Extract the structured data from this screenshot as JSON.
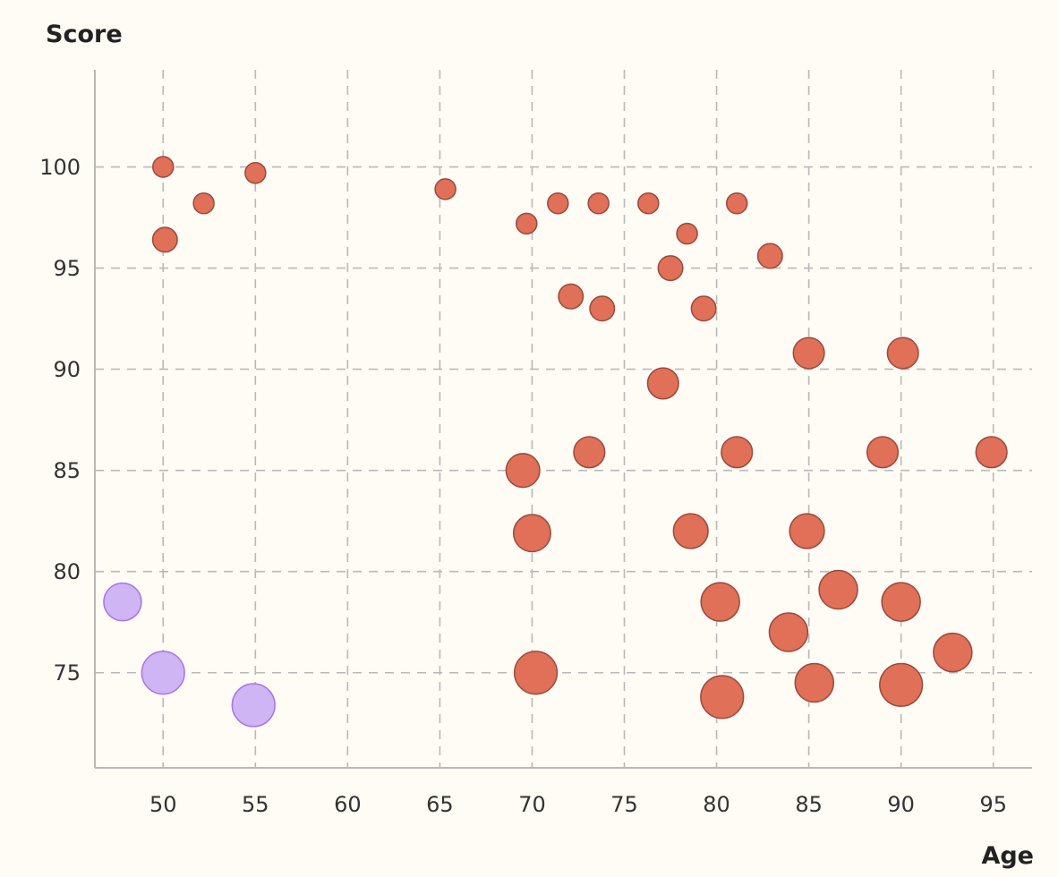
{
  "chart_data": {
    "type": "scatter",
    "xlabel": "Age",
    "ylabel": "Score",
    "xlim": [
      46.3,
      97.1
    ],
    "ylim": [
      70.3,
      104.8
    ],
    "x_ticks": [
      50,
      55,
      60,
      65,
      70,
      75,
      80,
      85,
      90,
      95
    ],
    "y_ticks": [
      75,
      80,
      85,
      90,
      95,
      100
    ],
    "grid": true,
    "colors": {
      "primary_fill": "#e07058",
      "primary_stroke": "#9a4a3c",
      "secondary_fill": "#d0b5f5",
      "secondary_stroke": "#a374ee",
      "grid": "#b9b9b9",
      "axis": "#b8b8b8",
      "background": "#fffbf5"
    },
    "series": [
      {
        "points": [
          {
            "x": 50.0,
            "y": 100.0,
            "s": 1.0
          },
          {
            "x": 55.0,
            "y": 99.7,
            "s": 1.0
          },
          {
            "x": 52.2,
            "y": 98.2,
            "s": 1.0
          },
          {
            "x": 50.1,
            "y": 96.4,
            "s": 1.5
          },
          {
            "x": 65.3,
            "y": 98.9,
            "s": 1.0
          },
          {
            "x": 69.7,
            "y": 97.2,
            "s": 1.0
          },
          {
            "x": 71.4,
            "y": 98.2,
            "s": 1.0
          },
          {
            "x": 73.6,
            "y": 98.2,
            "s": 1.0
          },
          {
            "x": 76.3,
            "y": 98.2,
            "s": 1.0
          },
          {
            "x": 81.1,
            "y": 98.2,
            "s": 1.0
          },
          {
            "x": 78.4,
            "y": 96.7,
            "s": 1.0
          },
          {
            "x": 82.9,
            "y": 95.6,
            "s": 1.5
          },
          {
            "x": 77.5,
            "y": 95.0,
            "s": 1.5
          },
          {
            "x": 72.1,
            "y": 93.6,
            "s": 1.5
          },
          {
            "x": 73.8,
            "y": 93.0,
            "s": 1.5
          },
          {
            "x": 79.3,
            "y": 93.0,
            "s": 1.5
          },
          {
            "x": 85.0,
            "y": 90.8,
            "s": 2.5
          },
          {
            "x": 90.1,
            "y": 90.8,
            "s": 2.5
          },
          {
            "x": 77.1,
            "y": 89.3,
            "s": 2.5
          },
          {
            "x": 73.1,
            "y": 85.9,
            "s": 2.5
          },
          {
            "x": 81.1,
            "y": 85.9,
            "s": 2.5
          },
          {
            "x": 89.0,
            "y": 85.9,
            "s": 2.5
          },
          {
            "x": 94.9,
            "y": 85.9,
            "s": 2.5
          },
          {
            "x": 69.5,
            "y": 85.0,
            "s": 3.0
          },
          {
            "x": 70.0,
            "y": 81.9,
            "s": 3.7
          },
          {
            "x": 78.6,
            "y": 82.0,
            "s": 3.2
          },
          {
            "x": 84.9,
            "y": 82.0,
            "s": 3.2
          },
          {
            "x": 86.6,
            "y": 79.1,
            "s": 4.0
          },
          {
            "x": 80.2,
            "y": 78.5,
            "s": 4.0
          },
          {
            "x": 90.0,
            "y": 78.5,
            "s": 4.0
          },
          {
            "x": 83.9,
            "y": 77.0,
            "s": 4.0
          },
          {
            "x": 92.8,
            "y": 76.0,
            "s": 4.0
          },
          {
            "x": 70.2,
            "y": 75.0,
            "s": 5.0
          },
          {
            "x": 85.3,
            "y": 74.5,
            "s": 4.0
          },
          {
            "x": 90.0,
            "y": 74.4,
            "s": 5.0
          },
          {
            "x": 80.3,
            "y": 73.8,
            "s": 5.0
          }
        ]
      },
      {
        "points": [
          {
            "x": 47.8,
            "y": 78.5,
            "s": 3.8
          },
          {
            "x": 50.0,
            "y": 75.0,
            "s": 5.0
          },
          {
            "x": 54.9,
            "y": 73.4,
            "s": 5.0
          }
        ]
      }
    ]
  }
}
